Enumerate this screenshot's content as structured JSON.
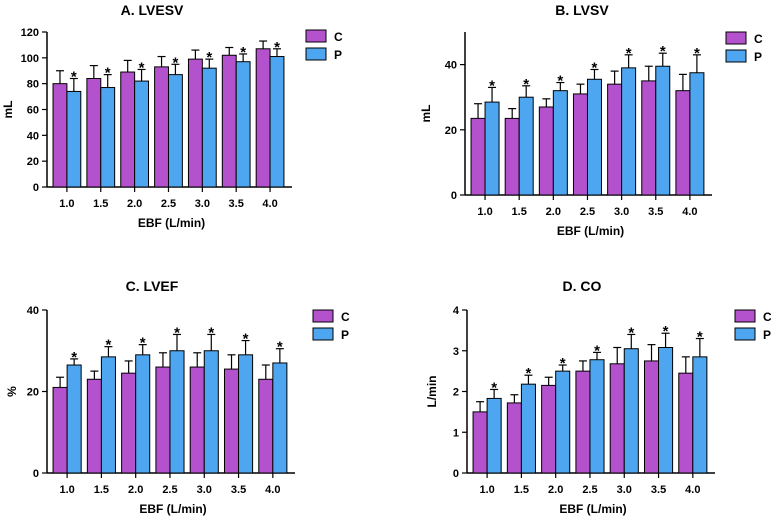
{
  "colors": {
    "C": "#B452CD",
    "P": "#4FA6F0"
  },
  "chart_data": [
    {
      "type": "bar",
      "title": "A. LVESV",
      "xlabel": "EBF (L/min)",
      "ylabel": "mL",
      "ylim": [
        0,
        120
      ],
      "yticks": [
        "0",
        "20",
        "40",
        "60",
        "80",
        "100",
        "120"
      ],
      "categories": [
        "1.0",
        "1.5",
        "2.0",
        "2.5",
        "3.0",
        "3.5",
        "4.0"
      ],
      "series": [
        {
          "name": "C",
          "values": [
            80,
            84,
            89,
            93,
            99,
            102,
            107
          ],
          "errors": [
            10,
            10,
            9,
            8,
            7,
            6,
            6
          ]
        },
        {
          "name": "P",
          "values": [
            74,
            77,
            82,
            87,
            92,
            97,
            101
          ],
          "errors": [
            10,
            10,
            9,
            8,
            7,
            6,
            6
          ]
        }
      ],
      "significance": [
        "*",
        "*",
        "*",
        "*",
        "*",
        "*",
        "*"
      ],
      "legend": [
        "C",
        "P"
      ]
    },
    {
      "type": "bar",
      "title": "B. LVSV",
      "xlabel": "EBF (L/min)",
      "ylabel": "mL",
      "ylim": [
        0,
        50
      ],
      "yticks": [
        "0",
        "20",
        "40"
      ],
      "categories": [
        "1.0",
        "1.5",
        "2.0",
        "2.5",
        "3.0",
        "3.5",
        "4.0"
      ],
      "series": [
        {
          "name": "C",
          "values": [
            23.5,
            23.5,
            27,
            31,
            34,
            35,
            32
          ],
          "errors": [
            4.5,
            3,
            2.5,
            3,
            4,
            4.5,
            5
          ]
        },
        {
          "name": "P",
          "values": [
            28.5,
            30,
            32,
            35.5,
            39,
            39.5,
            37.5
          ],
          "errors": [
            4.5,
            3.5,
            2.5,
            3,
            4,
            4,
            5.5
          ]
        }
      ],
      "significance": [
        "*",
        "*",
        "*",
        "*",
        "*",
        "*",
        "*"
      ],
      "legend": [
        "C",
        "P"
      ]
    },
    {
      "type": "bar",
      "title": "C. LVEF",
      "xlabel": "EBF (L/min)",
      "ylabel": "%",
      "ylim": [
        0,
        40
      ],
      "yticks": [
        "0",
        "20",
        "40"
      ],
      "categories": [
        "1.0",
        "1.5",
        "2.0",
        "2.5",
        "3.0",
        "3.5",
        "4.0"
      ],
      "series": [
        {
          "name": "C",
          "values": [
            21,
            23,
            24.5,
            26,
            26,
            25.5,
            23
          ],
          "errors": [
            2.5,
            2,
            3,
            3.5,
            3.5,
            3.5,
            3.5
          ]
        },
        {
          "name": "P",
          "values": [
            26.5,
            28.5,
            29,
            30,
            30,
            29,
            27
          ],
          "errors": [
            1.5,
            2.5,
            2.5,
            4,
            4,
            3.5,
            3.5
          ]
        }
      ],
      "significance": [
        "*",
        "*",
        "*",
        "*",
        "*",
        "*",
        "*"
      ],
      "legend": [
        "C",
        "P"
      ]
    },
    {
      "type": "bar",
      "title": "D. CO",
      "xlabel": "EBF (L/min)",
      "ylabel": "L/min",
      "ylim": [
        0,
        4
      ],
      "yticks": [
        "0",
        "1",
        "2",
        "3",
        "4"
      ],
      "categories": [
        "1.0",
        "1.5",
        "2.0",
        "2.5",
        "3.0",
        "3.5",
        "4.0"
      ],
      "series": [
        {
          "name": "C",
          "values": [
            1.5,
            1.72,
            2.15,
            2.5,
            2.68,
            2.75,
            2.45
          ],
          "errors": [
            0.25,
            0.2,
            0.2,
            0.25,
            0.4,
            0.4,
            0.4
          ]
        },
        {
          "name": "P",
          "values": [
            1.83,
            2.18,
            2.5,
            2.78,
            3.05,
            3.08,
            2.85
          ],
          "errors": [
            0.22,
            0.22,
            0.15,
            0.18,
            0.35,
            0.35,
            0.45
          ]
        }
      ],
      "significance": [
        "*",
        "*",
        "*",
        "*",
        "*",
        "*",
        "*"
      ],
      "legend": [
        "C",
        "P"
      ]
    }
  ]
}
